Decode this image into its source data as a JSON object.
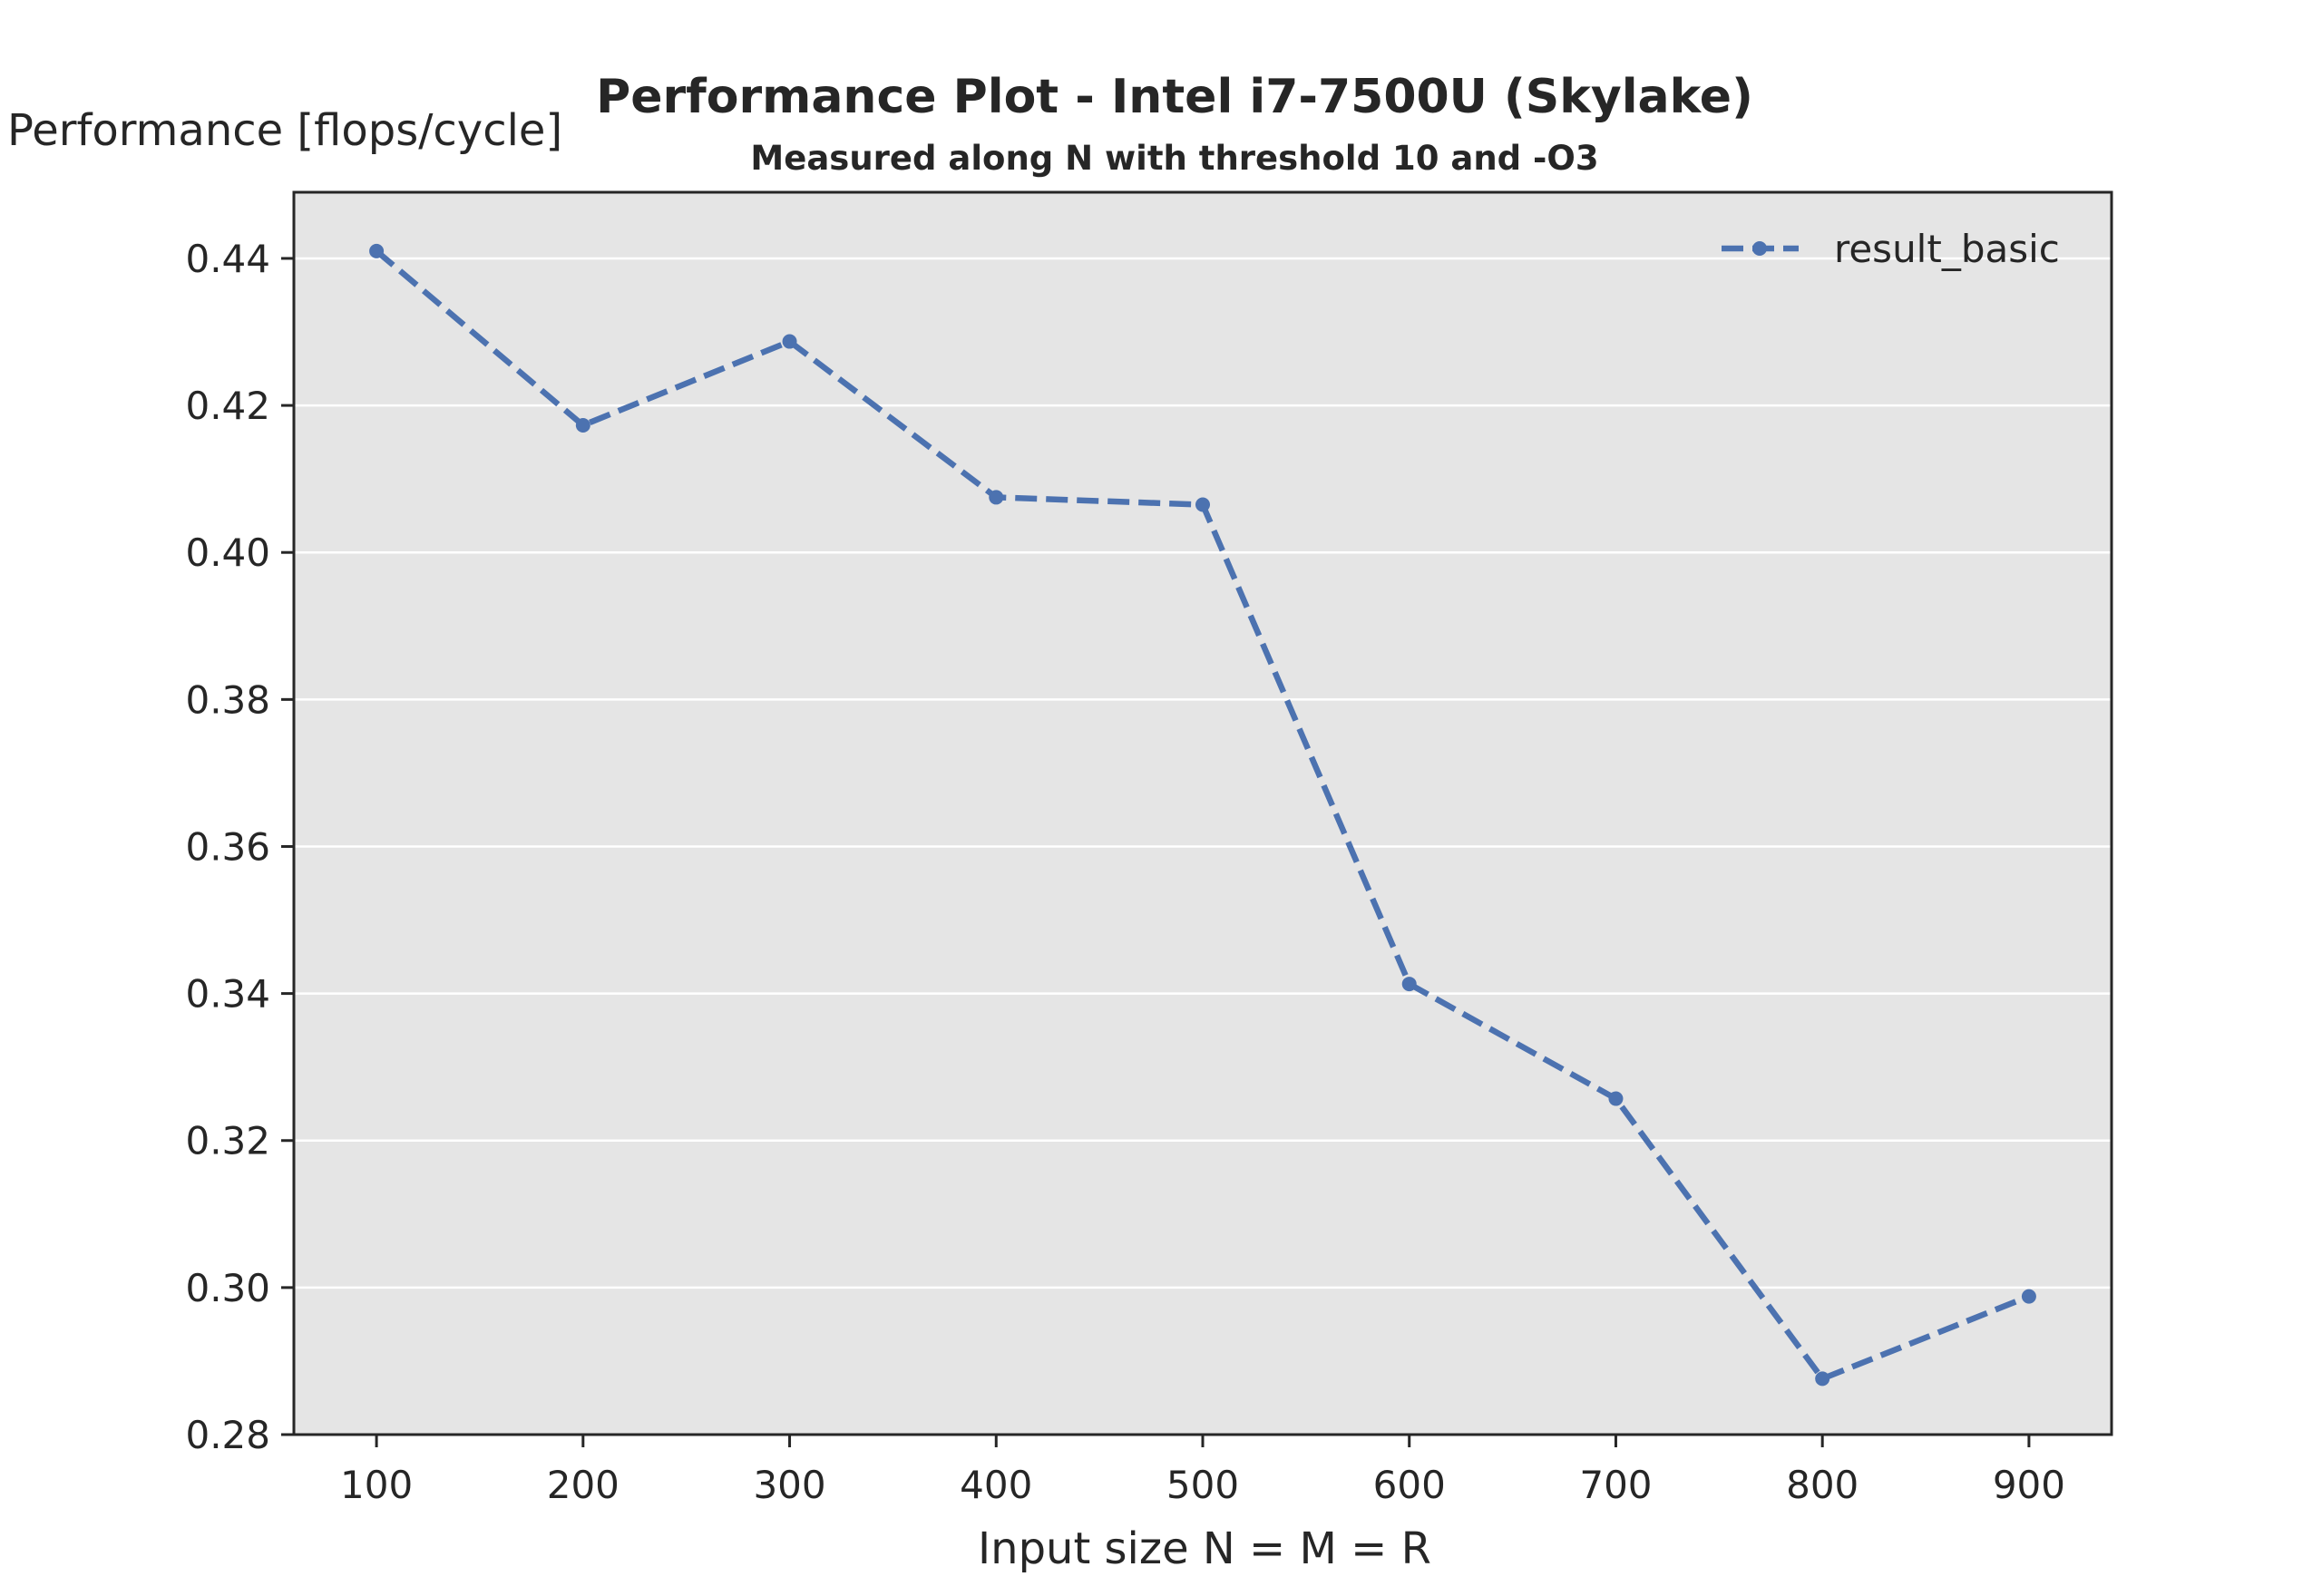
{
  "chart_data": {
    "type": "line",
    "title": "Performance Plot - Intel i7-7500U (Skylake)",
    "subtitle": "Measured along N with threshold 10 and -O3",
    "xlabel": "Input size N = M = R",
    "ylabel": "Performance [flops/cycle]",
    "x": [
      100,
      200,
      300,
      400,
      500,
      600,
      700,
      800,
      900
    ],
    "xlim": [
      60,
      940
    ],
    "ylim": [
      0.28,
      0.449
    ],
    "xticks": [
      100,
      200,
      300,
      400,
      500,
      600,
      700,
      800,
      900
    ],
    "yticks": [
      0.28,
      0.3,
      0.32,
      0.34,
      0.36,
      0.38,
      0.4,
      0.42,
      0.44
    ],
    "ytick_labels": [
      "0.28",
      "0.30",
      "0.32",
      "0.34",
      "0.36",
      "0.38",
      "0.40",
      "0.42",
      "0.44"
    ],
    "grid": "horizontal",
    "legend_position": "top-right",
    "series": [
      {
        "name": "result_basic",
        "values": [
          0.441,
          0.4173,
          0.4287,
          0.4075,
          0.4065,
          0.3413,
          0.3257,
          0.2876,
          0.2988
        ],
        "color": "#4c72b0",
        "line_style": "dashed",
        "marker": "circle"
      }
    ],
    "colors": {
      "plot_background": "#e5e5e5",
      "grid": "#ffffff",
      "axis": "#262626"
    }
  }
}
